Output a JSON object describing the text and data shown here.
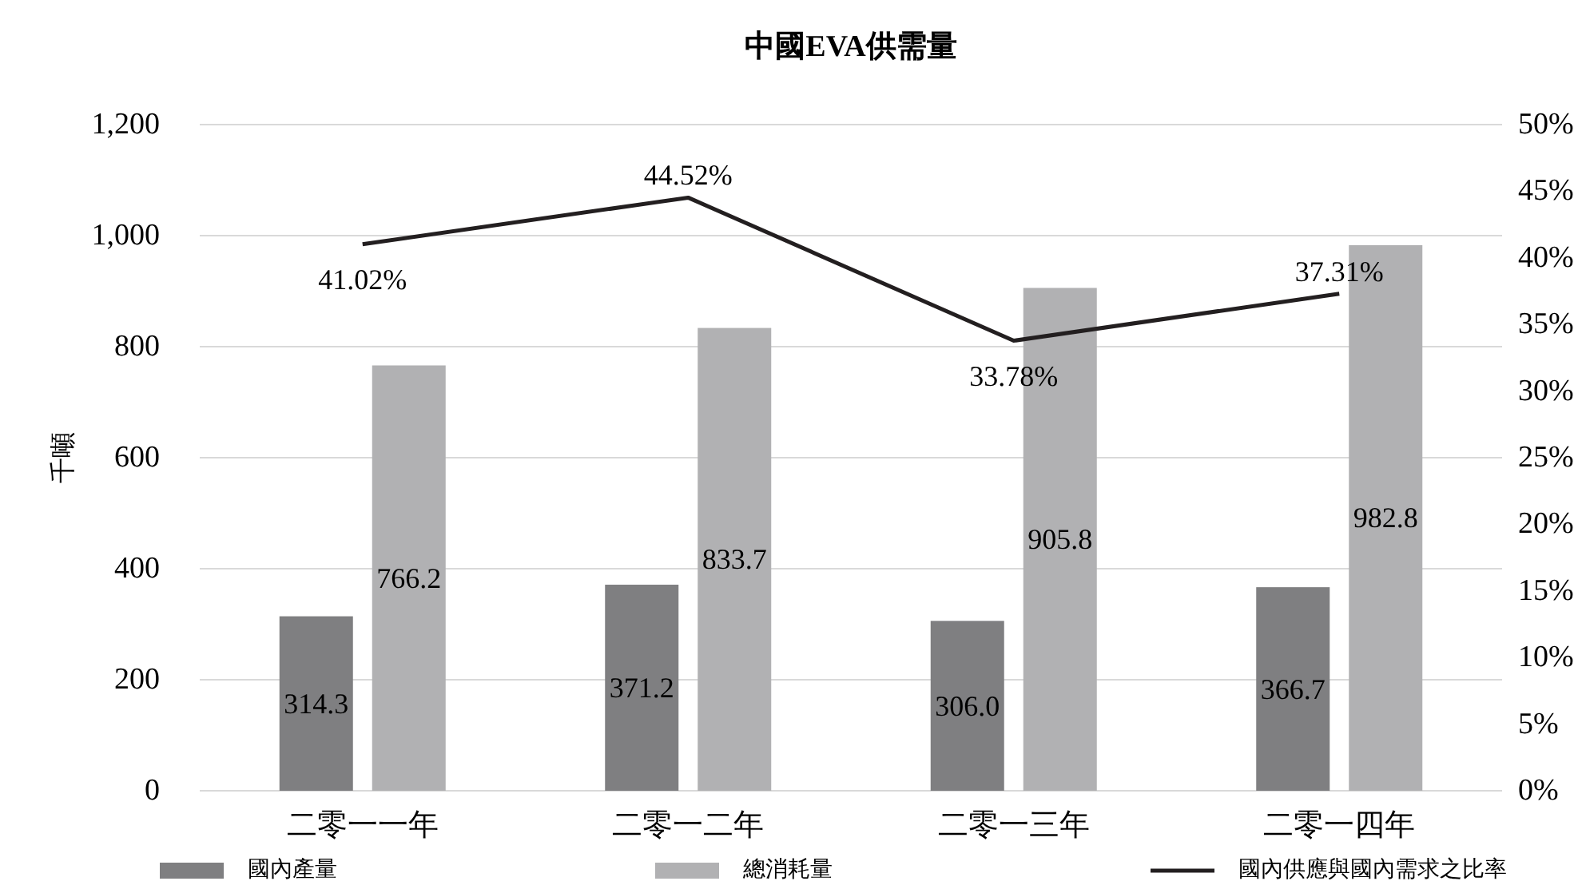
{
  "chart_data": {
    "type": "bar",
    "title": "中國EVA供需量",
    "ylabel": "千噸",
    "categories": [
      "二零一一年",
      "二零一二年",
      "二零一三年",
      "二零一四年"
    ],
    "series": [
      {
        "name": "國內產量",
        "color": "#7f7f81",
        "values": [
          314.3,
          371.2,
          306.0,
          366.7
        ],
        "value_labels": [
          "314.3",
          "371.2",
          "306.0",
          "366.7"
        ]
      },
      {
        "name": "總消耗量",
        "color": "#b1b1b3",
        "values": [
          766.2,
          833.7,
          905.8,
          982.8
        ],
        "value_labels": [
          "766.2",
          "833.7",
          "905.8",
          "982.8"
        ]
      },
      {
        "name": "國內供應與國內需求之比率",
        "type": "line",
        "axis": "y2",
        "color": "#231f20",
        "values": [
          41.02,
          44.52,
          33.78,
          37.31
        ],
        "value_labels": [
          "41.02%",
          "44.52%",
          "33.78%",
          "37.31%"
        ]
      }
    ],
    "ylim": [
      0,
      1200
    ],
    "yticks": [
      0,
      {
        "value": 200,
        "label": "200"
      },
      {
        "value": 400,
        "label": "400"
      },
      {
        "value": 600,
        "label": "600"
      },
      {
        "value": 800,
        "label": "800"
      },
      {
        "value": 1000,
        "label": "1,000"
      },
      {
        "value": 1200,
        "label": "1,200"
      }
    ],
    "y2lim": [
      0,
      50
    ],
    "y2ticks": [
      {
        "value": 0,
        "label": "0%"
      },
      {
        "value": 5,
        "label": "5%"
      },
      {
        "value": 10,
        "label": "10%"
      },
      {
        "value": 15,
        "label": "15%"
      },
      {
        "value": 20,
        "label": "20%"
      },
      {
        "value": 25,
        "label": "25%"
      },
      {
        "value": 30,
        "label": "30%"
      },
      {
        "value": 35,
        "label": "35%"
      },
      {
        "value": 40,
        "label": "40%"
      },
      {
        "value": 45,
        "label": "45%"
      },
      {
        "value": 50,
        "label": "50%"
      }
    ],
    "grid": "y",
    "legend": "bottom",
    "marker": "none",
    "line_style": "solid"
  }
}
